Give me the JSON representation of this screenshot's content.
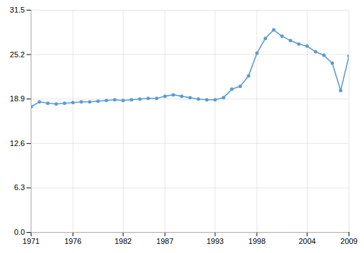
{
  "chart_data": {
    "type": "line",
    "x": [
      1971,
      1972,
      1973,
      1974,
      1975,
      1976,
      1977,
      1978,
      1979,
      1980,
      1981,
      1982,
      1983,
      1984,
      1985,
      1986,
      1987,
      1988,
      1989,
      1990,
      1991,
      1992,
      1993,
      1994,
      1995,
      1996,
      1997,
      1998,
      1999,
      2000,
      2001,
      2002,
      2003,
      2004,
      2005,
      2006,
      2007,
      2008,
      2009
    ],
    "values": [
      17.8,
      18.5,
      18.3,
      18.2,
      18.3,
      18.4,
      18.5,
      18.5,
      18.6,
      18.7,
      18.8,
      18.7,
      18.8,
      18.9,
      19.0,
      19.0,
      19.3,
      19.5,
      19.3,
      19.1,
      18.9,
      18.8,
      18.8,
      19.1,
      20.3,
      20.7,
      22.2,
      25.4,
      27.5,
      28.7,
      27.8,
      27.2,
      26.7,
      26.4,
      25.6,
      25.1,
      24.0,
      20.1,
      25.0
    ],
    "color": "#5b9bd5",
    "marker": "circle",
    "xlim": [
      1971,
      2009
    ],
    "ylim": [
      0.0,
      31.5
    ],
    "xticks": [
      1971,
      1976,
      1982,
      1987,
      1993,
      1998,
      2004,
      2009
    ],
    "yticks": [
      {
        "value": 0,
        "label": "0.0"
      },
      6.3,
      12.6,
      18.9,
      25.2,
      31.5
    ],
    "grid": true
  }
}
